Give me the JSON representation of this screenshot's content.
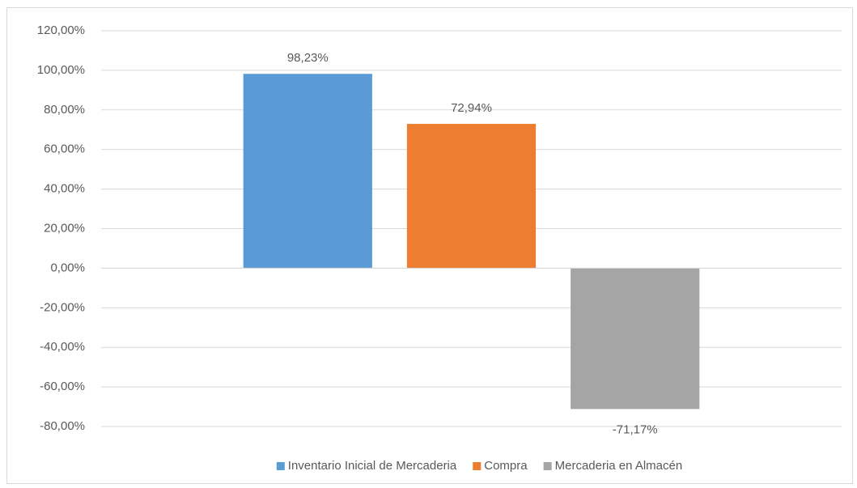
{
  "chart_data": {
    "type": "bar",
    "categories": [
      null
    ],
    "series": [
      {
        "name": "Inventario Inicial de Mercaderia",
        "color": "#5b9bd5",
        "values": [
          98.23
        ],
        "value_labels": [
          "98,23%"
        ]
      },
      {
        "name": "Compra",
        "color": "#ed7d31",
        "values": [
          72.94
        ],
        "value_labels": [
          "72,94%"
        ]
      },
      {
        "name": "Mercaderia en Almacén",
        "color": "#a5a5a5",
        "values": [
          -71.17
        ],
        "value_labels": [
          "-71,17%"
        ]
      }
    ],
    "ylim": [
      -80,
      120
    ],
    "yticks": [
      {
        "value": -80,
        "label": "-80,00%"
      },
      {
        "value": -60,
        "label": "-60,00%"
      },
      {
        "value": -40,
        "label": "-40,00%"
      },
      {
        "value": -20,
        "label": "-20,00%"
      },
      {
        "value": 0,
        "label": "0,00%"
      },
      {
        "value": 20,
        "label": "20,00%"
      },
      {
        "value": 40,
        "label": "40,00%"
      },
      {
        "value": 60,
        "label": "60,00%"
      },
      {
        "value": 80,
        "label": "80,00%"
      },
      {
        "value": 100,
        "label": "100,00%"
      },
      {
        "value": 120,
        "label": "120,00%"
      }
    ],
    "grid": true,
    "legend": "bottom"
  }
}
